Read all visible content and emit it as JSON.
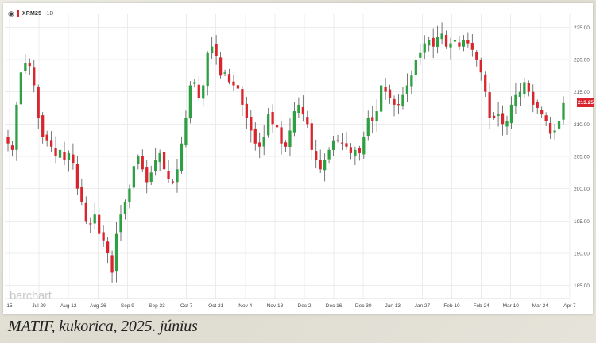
{
  "header": {
    "eye_icon": "eye-icon",
    "symbol": "XRM25",
    "timeframe": "-1D"
  },
  "watermark": "barchart",
  "last_price": "213.25",
  "caption": "MATIF, kukorica, 2025. június",
  "colors": {
    "up": "#2ea043",
    "down": "#d9262e",
    "last_badge": "#d9262e"
  },
  "chart_data": {
    "type": "candlestick",
    "title": "",
    "xlabel": "",
    "ylabel": "",
    "y_axis_side": "right",
    "ylim": [
      183,
      227
    ],
    "yticks": [
      185,
      190,
      195,
      200,
      205,
      210,
      215,
      220,
      225
    ],
    "ytick_labels": [
      "185.00",
      "190.00",
      "195.00",
      "200.00",
      "205.00",
      "210.00",
      "215.00",
      "220.00",
      "225.00"
    ],
    "xticks": [
      "15",
      "Jul 29",
      "Aug 12",
      "Aug 26",
      "Sep 9",
      "Sep 23",
      "Oct 7",
      "Oct 21",
      "Nov 4",
      "Nov 18",
      "Dec 2",
      "Dec 16",
      "Dec 30",
      "Jan 13",
      "Jan 27",
      "Feb 10",
      "Feb 24",
      "Mar 10",
      "Mar 24",
      "Apr 7"
    ],
    "grid": true,
    "legend": "none",
    "last_value": 213.25,
    "approx_closes": [
      [
        207.0,
        206.0,
        213.0,
        218.0,
        219.5,
        219.0,
        216.0,
        211.0,
        208.0,
        207.5,
        206.5,
        205.0,
        206.0,
        204.5,
        205.5,
        204.0,
        200.0,
        198.0,
        195.0,
        194.5,
        196.0,
        193.0,
        192.0,
        190.0,
        187.0,
        193.0,
        196.0,
        198.0,
        200.0,
        203.5,
        205.0,
        203.0,
        201.0,
        202.5,
        204.5,
        205.5,
        203.0,
        201.5,
        201.0,
        203.0,
        207.0,
        211.0,
        216.0,
        216.5,
        214.0,
        216.0,
        221.0,
        222.0,
        220.5,
        217.5,
        218.0,
        216.5,
        216.0,
        215.5,
        213.0,
        211.0,
        209.0,
        207.0,
        206.5,
        208.0,
        211.5,
        210.0,
        209.5,
        207.0,
        206.5,
        209.0,
        212.0,
        213.0,
        211.5,
        210.0,
        206.0,
        204.5,
        203.0,
        204.5,
        206.0,
        207.5,
        207.5,
        207.0,
        206.5,
        205.5,
        206.0,
        205.5,
        208.0,
        211.0,
        210.5,
        212.0,
        216.0,
        215.0,
        214.0,
        213.0,
        213.0,
        214.5,
        216.0,
        217.5,
        220.0,
        221.0,
        222.5,
        223.0,
        222.0,
        223.5,
        224.0,
        222.0,
        222.5,
        223.0,
        222.0,
        223.0,
        222.5,
        221.5,
        220.0,
        218.0,
        215.0,
        211.0,
        211.0,
        211.5,
        210.0,
        210.5,
        213.0,
        214.5,
        215.0,
        216.5,
        215.0,
        213.0,
        212.5,
        211.5,
        210.5,
        208.5,
        209.0,
        210.5,
        213.25
      ]
    ]
  }
}
